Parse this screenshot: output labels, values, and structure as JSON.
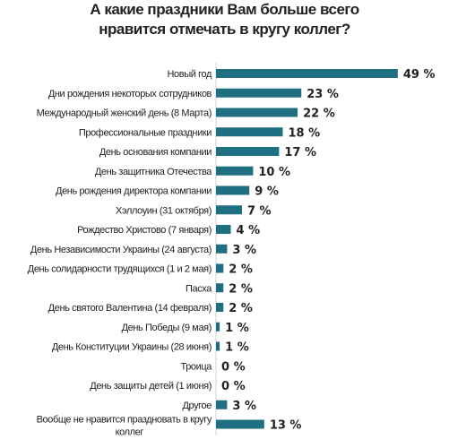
{
  "chart_data": {
    "type": "bar",
    "orientation": "horizontal",
    "title_lines": [
      "А какие праздники Вам больше всего",
      "нравится отмечать в кругу коллег?"
    ],
    "categories": [
      "Новый год",
      "Дни рождения некоторых сотрудников",
      "Международный женский день (8 Марта)",
      "Профессиональные праздники",
      "День основания компании",
      "День защитника Отечества",
      "День рождения директора компании",
      "Хэллоуин (31 октября)",
      "Рождество Христово (7 января)",
      "День Независимости Украины (24 августа)",
      "День солидарности трудящихся (1 и 2 мая)",
      "Пасха",
      "День святого Валентина (14 февраля)",
      "День Победы (9 мая)",
      "День Конституции Украины (28 июня)",
      "Троица",
      "День защиты детей (1 июня)",
      "Другое",
      "Вообще не нравится праздновать в кругу коллег"
    ],
    "values": [
      49,
      23,
      22,
      18,
      17,
      10,
      9,
      7,
      4,
      3,
      2,
      2,
      2,
      1,
      1,
      0,
      0,
      3,
      13
    ],
    "value_suffix": "%",
    "bar_color": "#1f6f82",
    "xlim": [
      0,
      50
    ],
    "grid": false,
    "legend": "none"
  }
}
